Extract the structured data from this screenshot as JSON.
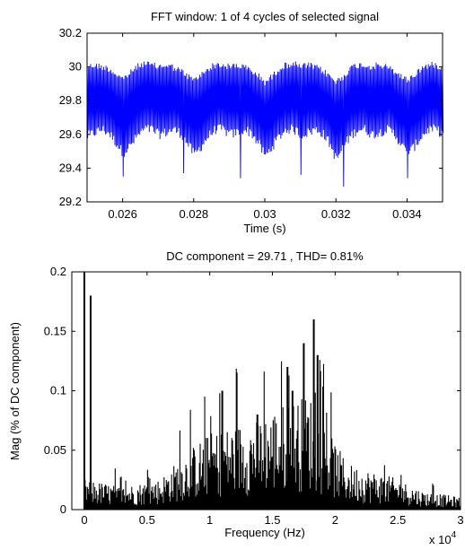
{
  "chart_data": [
    {
      "type": "line",
      "title": "FFT window: 1 of 4 cycles of selected signal",
      "xlabel": "Time (s)",
      "ylabel": "",
      "xlim": [
        0.025,
        0.035
      ],
      "ylim": [
        29.2,
        30.2
      ],
      "xticks": [
        "0.026",
        "0.028",
        "0.03",
        "0.032",
        "0.034"
      ],
      "xtick_values": [
        0.026,
        0.028,
        0.03,
        0.032,
        0.034
      ],
      "yticks": [
        "29.2",
        "29.4",
        "29.6",
        "29.8",
        "30",
        "30.2"
      ],
      "ytick_values": [
        29.2,
        29.4,
        29.6,
        29.8,
        30.0,
        30.2
      ],
      "grid": false,
      "series": [
        {
          "color": "#0000ff",
          "x": [
            0.025,
            0.0252,
            0.0254,
            0.0256,
            0.0258,
            0.026,
            0.0262,
            0.0264,
            0.0266,
            0.0268,
            0.027,
            0.0272,
            0.0274,
            0.0276,
            0.0278,
            0.028,
            0.0282,
            0.0284,
            0.0286,
            0.0288,
            0.029,
            0.0292,
            0.0294,
            0.0296,
            0.0298,
            0.03,
            0.0302,
            0.0304,
            0.0306,
            0.0308,
            0.031,
            0.0312,
            0.0314,
            0.0316,
            0.0318,
            0.032,
            0.0322,
            0.0324,
            0.0326,
            0.0328,
            0.033,
            0.0332,
            0.0334,
            0.0336,
            0.0338,
            0.034,
            0.0342,
            0.0344,
            0.0346,
            0.0348,
            0.035
          ],
          "upper": [
            30.02,
            30.03,
            30.02,
            30.01,
            29.98,
            29.95,
            29.98,
            30.02,
            30.04,
            30.03,
            30.02,
            30.03,
            30.02,
            30.0,
            29.97,
            29.94,
            29.97,
            30.01,
            30.03,
            30.03,
            30.02,
            30.03,
            30.02,
            30.0,
            29.97,
            29.93,
            29.96,
            30.01,
            30.03,
            30.04,
            30.02,
            30.03,
            30.02,
            30.0,
            29.97,
            29.93,
            29.96,
            30.01,
            30.03,
            30.03,
            30.02,
            30.03,
            30.02,
            30.0,
            29.97,
            29.94,
            29.97,
            30.01,
            30.03,
            30.03,
            30.02
          ],
          "lower": [
            29.56,
            29.58,
            29.6,
            29.58,
            29.52,
            29.46,
            29.5,
            29.56,
            29.6,
            29.6,
            29.57,
            29.58,
            29.6,
            29.58,
            29.52,
            29.45,
            29.5,
            29.56,
            29.6,
            29.6,
            29.57,
            29.58,
            29.6,
            29.58,
            29.52,
            29.44,
            29.5,
            29.56,
            29.6,
            29.6,
            29.57,
            29.58,
            29.6,
            29.58,
            29.52,
            29.42,
            29.5,
            29.56,
            29.6,
            29.6,
            29.57,
            29.58,
            29.6,
            29.58,
            29.52,
            29.45,
            29.5,
            29.56,
            29.6,
            29.6,
            29.57
          ],
          "dips": [
            {
              "x": 0.026,
              "y": 29.35
            },
            {
              "x": 0.0277,
              "y": 29.37
            },
            {
              "x": 0.0293,
              "y": 29.34
            },
            {
              "x": 0.031,
              "y": 29.36
            },
            {
              "x": 0.0322,
              "y": 29.29
            },
            {
              "x": 0.034,
              "y": 29.34
            }
          ]
        }
      ]
    },
    {
      "type": "bar",
      "title": "DC component = 29.71 , THD= 0.81%",
      "xlabel": "Frequency (Hz)",
      "ylabel": "Mag (% of DC component)",
      "xlim": [
        -1000,
        30000
      ],
      "ylim": [
        0,
        0.2
      ],
      "x_multiplier": "x 10",
      "x_multiplier_exp": "4",
      "xticks": [
        "0",
        "0.5",
        "1",
        "1.5",
        "2",
        "2.5",
        "3"
      ],
      "xtick_values": [
        0,
        5000,
        10000,
        15000,
        20000,
        25000,
        30000
      ],
      "yticks": [
        "0",
        "0.05",
        "0.1",
        "0.15",
        "0.2"
      ],
      "ytick_values": [
        0,
        0.05,
        0.1,
        0.15,
        0.2
      ],
      "grid": false,
      "color": "#000000",
      "peaks": [
        {
          "x": 0,
          "y": 0.2
        },
        {
          "x": 500,
          "y": 0.18
        },
        {
          "x": 11000,
          "y": 0.1
        },
        {
          "x": 13800,
          "y": 0.08
        },
        {
          "x": 16200,
          "y": 0.12
        },
        {
          "x": 16600,
          "y": 0.1
        },
        {
          "x": 17500,
          "y": 0.14
        },
        {
          "x": 18300,
          "y": 0.16
        },
        {
          "x": 18600,
          "y": 0.13
        }
      ],
      "envelope": [
        {
          "x": 0,
          "y": 0.02
        },
        {
          "x": 3000,
          "y": 0.015
        },
        {
          "x": 6000,
          "y": 0.02
        },
        {
          "x": 8500,
          "y": 0.04
        },
        {
          "x": 10000,
          "y": 0.05
        },
        {
          "x": 12000,
          "y": 0.055
        },
        {
          "x": 14000,
          "y": 0.06
        },
        {
          "x": 16000,
          "y": 0.07
        },
        {
          "x": 18000,
          "y": 0.075
        },
        {
          "x": 19500,
          "y": 0.05
        },
        {
          "x": 21000,
          "y": 0.03
        },
        {
          "x": 23000,
          "y": 0.025
        },
        {
          "x": 25000,
          "y": 0.02
        },
        {
          "x": 27000,
          "y": 0.012
        },
        {
          "x": 30000,
          "y": 0.008
        }
      ]
    }
  ]
}
